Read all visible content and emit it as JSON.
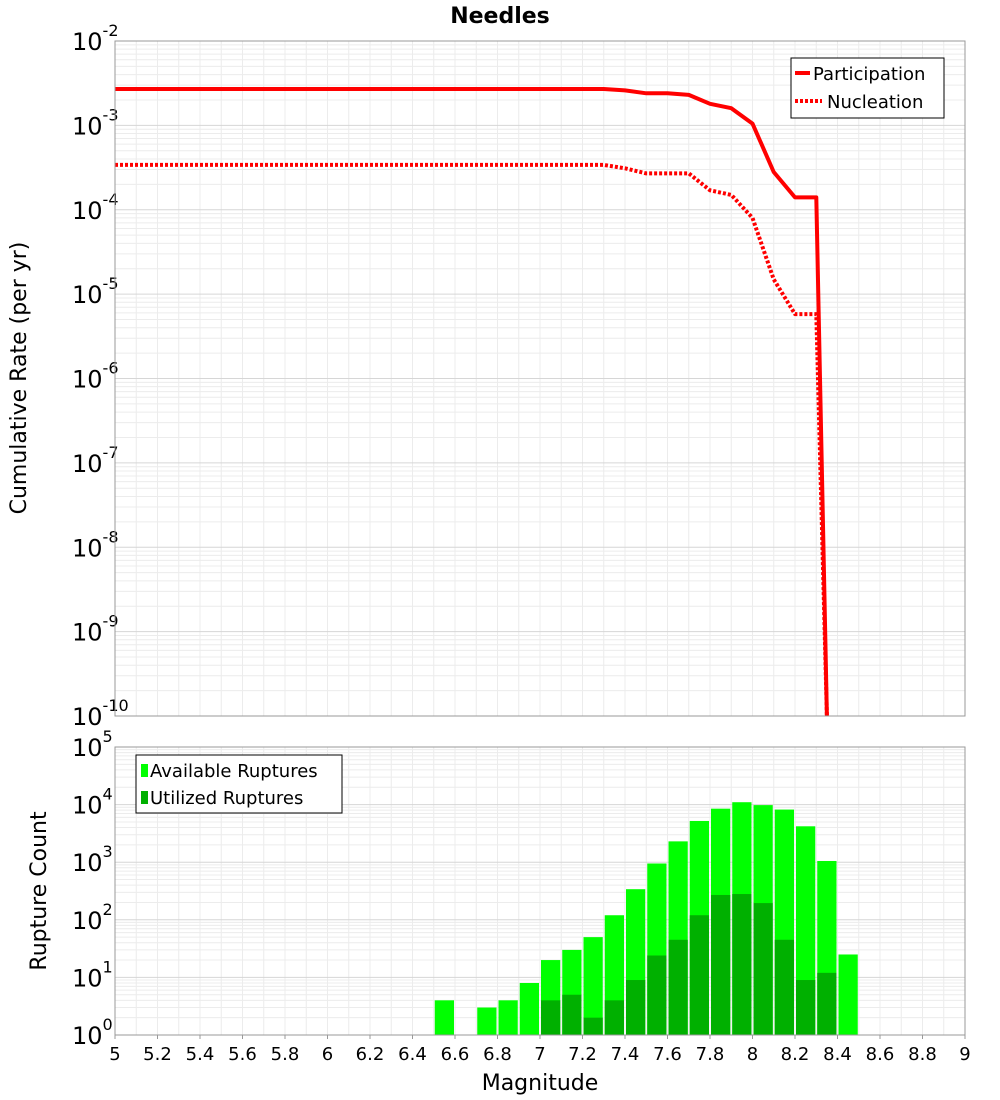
{
  "chart_data": [
    {
      "type": "line",
      "title": "Needles",
      "ylabel": "Cumulative Rate (per yr)",
      "xlabel": "",
      "xlim": [
        5,
        9
      ],
      "ylim": [
        1e-10,
        0.01
      ],
      "y_scale": "log",
      "y_tick_exponents": [
        -2,
        -3,
        -4,
        -5,
        -6,
        -7,
        -8,
        -9,
        -10
      ],
      "grid": true,
      "legend_position": "top-right",
      "series": [
        {
          "name": "Participation",
          "style": "solid",
          "color": "#ff0000",
          "x": [
            5.0,
            5.1,
            5.2,
            5.3,
            5.4,
            5.5,
            5.6,
            5.7,
            5.8,
            5.9,
            6.0,
            6.1,
            6.2,
            6.3,
            6.4,
            6.5,
            6.6,
            6.7,
            6.8,
            6.9,
            7.0,
            7.1,
            7.2,
            7.3,
            7.4,
            7.5,
            7.6,
            7.7,
            7.8,
            7.9,
            8.0,
            8.1,
            8.2,
            8.3,
            8.35
          ],
          "y": [
            0.0027,
            0.0027,
            0.0027,
            0.0027,
            0.0027,
            0.0027,
            0.0027,
            0.0027,
            0.0027,
            0.0027,
            0.0027,
            0.0027,
            0.0027,
            0.0027,
            0.0027,
            0.0027,
            0.0027,
            0.0027,
            0.0027,
            0.0027,
            0.0027,
            0.0027,
            0.0027,
            0.0027,
            0.0026,
            0.0024,
            0.0024,
            0.0023,
            0.0018,
            0.0016,
            0.00105,
            0.00028,
            0.00014,
            0.00014,
            1e-10
          ]
        },
        {
          "name": "Nucleation",
          "style": "dotted",
          "color": "#ff0000",
          "x": [
            5.0,
            5.1,
            5.2,
            5.3,
            5.4,
            5.5,
            5.6,
            5.7,
            5.8,
            5.9,
            6.0,
            6.1,
            6.2,
            6.3,
            6.4,
            6.5,
            6.6,
            6.7,
            6.8,
            6.9,
            7.0,
            7.1,
            7.2,
            7.3,
            7.4,
            7.5,
            7.6,
            7.7,
            7.8,
            7.9,
            8.0,
            8.1,
            8.2,
            8.3,
            8.35
          ],
          "y": [
            0.00034,
            0.00034,
            0.00034,
            0.00034,
            0.00034,
            0.00034,
            0.00034,
            0.00034,
            0.00034,
            0.00034,
            0.00034,
            0.00034,
            0.00034,
            0.00034,
            0.00034,
            0.00034,
            0.00034,
            0.00034,
            0.00034,
            0.00034,
            0.00034,
            0.00034,
            0.00034,
            0.00034,
            0.00031,
            0.00027,
            0.00027,
            0.00027,
            0.00017,
            0.00015,
            8e-05,
            1.5e-05,
            5.8e-06,
            5.8e-06,
            1e-10
          ]
        }
      ]
    },
    {
      "type": "bar",
      "title": "",
      "ylabel": "Rupture Count",
      "xlabel": "Magnitude",
      "xlim": [
        5,
        9
      ],
      "ylim": [
        1,
        100000
      ],
      "y_scale": "log",
      "y_tick_exponents": [
        0,
        1,
        2,
        3,
        4,
        5
      ],
      "x_ticks": [
        "5",
        "5.2",
        "5.4",
        "5.6",
        "5.8",
        "6",
        "6.2",
        "6.4",
        "6.6",
        "6.8",
        "7",
        "7.2",
        "7.4",
        "7.6",
        "7.8",
        "8",
        "8.2",
        "8.4",
        "8.6",
        "8.8",
        "9"
      ],
      "bin_width": 0.1,
      "grid": true,
      "legend_position": "top-left",
      "series": [
        {
          "name": "Available Ruptures",
          "color": "#00ff00",
          "bins": [
            6.5,
            6.7,
            6.8,
            6.9,
            7.0,
            7.1,
            7.2,
            7.3,
            7.4,
            7.5,
            7.6,
            7.7,
            7.8,
            7.9,
            8.0,
            8.1,
            8.2,
            8.3,
            8.4
          ],
          "values": [
            4,
            3,
            4,
            8,
            20,
            30,
            50,
            120,
            340,
            950,
            2300,
            5200,
            8500,
            11000,
            9800,
            8200,
            4200,
            1050,
            25
          ]
        },
        {
          "name": "Utilized Ruptures",
          "color": "#00b000",
          "bins": [
            7.0,
            7.1,
            7.2,
            7.3,
            7.4,
            7.5,
            7.6,
            7.7,
            7.8,
            7.9,
            8.0,
            8.1,
            8.2,
            8.3
          ],
          "values": [
            4,
            5,
            2,
            4,
            9,
            24,
            45,
            120,
            270,
            280,
            195,
            45,
            9,
            12
          ]
        }
      ]
    }
  ]
}
